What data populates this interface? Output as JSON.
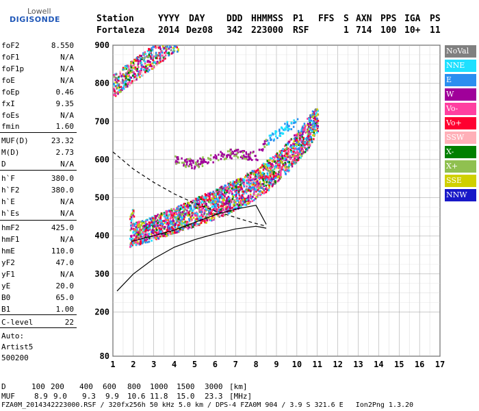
{
  "logo": {
    "line1": "Lowell",
    "line2": "DIGISONDE"
  },
  "header": {
    "labels": [
      "Station",
      "YYYY",
      "DAY",
      "DDD",
      "HHMMSS",
      "P1",
      "FFS",
      "S",
      "AXN",
      "PPS",
      "IGA",
      "PS"
    ],
    "values": [
      "Fortaleza",
      "2014",
      "Dez08",
      "342",
      "223000",
      "RSF",
      "1",
      "714",
      "100",
      "10+",
      "11"
    ]
  },
  "params": [
    {
      "name": "foF2",
      "value": "8.550"
    },
    {
      "name": "foF1",
      "value": "N/A"
    },
    {
      "name": "foF1p",
      "value": "N/A"
    },
    {
      "name": "foE",
      "value": "N/A"
    },
    {
      "name": "foEp",
      "value": "0.46"
    },
    {
      "name": "fxI",
      "value": "9.35"
    },
    {
      "name": "foEs",
      "value": "N/A"
    },
    {
      "name": "fmin",
      "value": "1.60"
    },
    {
      "name": "MUF(D)",
      "value": "23.32"
    },
    {
      "name": "M(D)",
      "value": "2.73"
    },
    {
      "name": "D",
      "value": "N/A"
    },
    {
      "name": "h`F",
      "value": "380.0"
    },
    {
      "name": "h`F2",
      "value": "380.0"
    },
    {
      "name": "h`E",
      "value": "N/A"
    },
    {
      "name": "h`Es",
      "value": "N/A"
    },
    {
      "name": "hmF2",
      "value": "425.0"
    },
    {
      "name": "hmF1",
      "value": "N/A"
    },
    {
      "name": "hmE",
      "value": "110.0"
    },
    {
      "name": "yF2",
      "value": "47.0"
    },
    {
      "name": "yF1",
      "value": "N/A"
    },
    {
      "name": "yE",
      "value": "20.0"
    },
    {
      "name": "B0",
      "value": "65.0"
    },
    {
      "name": "B1",
      "value": "1.00"
    },
    {
      "name": "C-level",
      "value": "22"
    }
  ],
  "auto": {
    "line1": "Auto:",
    "line2": "Artist5",
    "line3": "500200"
  },
  "legend": [
    {
      "label": "NoVal",
      "color": "#808080"
    },
    {
      "label": "NNE",
      "color": "#1ee0ff"
    },
    {
      "label": "E",
      "color": "#2b8ef0"
    },
    {
      "label": "W",
      "color": "#a0009a"
    },
    {
      "label": "Vo-",
      "color": "#ff3fa0"
    },
    {
      "label": "Vo+",
      "color": "#ff0030"
    },
    {
      "label": "SSW",
      "color": "#ffb0b8"
    },
    {
      "label": "X-",
      "color": "#008000"
    },
    {
      "label": "X+",
      "color": "#90c050"
    },
    {
      "label": "SSE",
      "color": "#d0d000"
    },
    {
      "label": "NNW",
      "color": "#1818c8"
    }
  ],
  "muf_table": {
    "d_label": "D",
    "d_values": [
      "100",
      "200",
      "400",
      "600",
      "800",
      "1000",
      "1500",
      "3000"
    ],
    "d_unit": "[km]",
    "muf_label": "MUF",
    "muf_values": [
      "8.9",
      "9.0",
      "9.3",
      "9.9",
      "10.6",
      "11.8",
      "15.0",
      "23.3"
    ],
    "muf_unit": "[MHz]"
  },
  "footer": "FZA0M_2014342223000.RSF / 320fx256h 50 kHz 5.0 km / DPS-4 FZA0M 904 / 3.9 S 321.6 E   Ion2Png 1.3.20",
  "chart_data": {
    "type": "scatter",
    "xlim": [
      1,
      17
    ],
    "ylim": [
      80,
      900
    ],
    "x_ticks": [
      1,
      2,
      3,
      4,
      5,
      6,
      7,
      8,
      9,
      10,
      11,
      12,
      13,
      14,
      15,
      16,
      17
    ],
    "y_ticks": [
      80,
      200,
      300,
      400,
      500,
      600,
      700,
      800,
      900
    ],
    "grid": true,
    "echo_traces": [
      {
        "name": "F-trace-main-lower",
        "points": [
          [
            1.8,
            385
          ],
          [
            2.5,
            395
          ],
          [
            3.5,
            412
          ],
          [
            4.5,
            430
          ],
          [
            5.5,
            448
          ],
          [
            6.5,
            470
          ],
          [
            7.5,
            495
          ],
          [
            8.5,
            530
          ],
          [
            9.5,
            580
          ],
          [
            10.5,
            640
          ],
          [
            11.0,
            690
          ]
        ]
      },
      {
        "name": "F-trace-main-upper",
        "points": [
          [
            2.0,
            410
          ],
          [
            3.0,
            430
          ],
          [
            4.0,
            452
          ],
          [
            5.0,
            475
          ],
          [
            6.0,
            500
          ],
          [
            7.0,
            525
          ],
          [
            8.0,
            555
          ],
          [
            9.0,
            595
          ],
          [
            10.0,
            650
          ],
          [
            10.8,
            710
          ]
        ]
      },
      {
        "name": "second-hop",
        "points": [
          [
            1.0,
            780
          ],
          [
            1.5,
            800
          ],
          [
            2.0,
            820
          ],
          [
            2.5,
            840
          ],
          [
            3.0,
            860
          ],
          [
            3.5,
            880
          ],
          [
            4.0,
            900
          ]
        ]
      },
      {
        "name": "isolated-cluster",
        "points": [
          [
            4.0,
            600
          ],
          [
            5.0,
            590
          ],
          [
            6.0,
            610
          ],
          [
            7.0,
            620
          ],
          [
            8.0,
            610
          ],
          [
            8.5,
            650
          ],
          [
            9.0,
            670
          ],
          [
            9.5,
            690
          ],
          [
            10.0,
            700
          ]
        ]
      }
    ],
    "profile_solid": {
      "points": [
        [
          1.2,
          255
        ],
        [
          2.0,
          300
        ],
        [
          3.0,
          340
        ],
        [
          4.0,
          370
        ],
        [
          5.0,
          390
        ],
        [
          6.0,
          405
        ],
        [
          7.0,
          418
        ],
        [
          8.0,
          425
        ],
        [
          8.5,
          420
        ]
      ]
    },
    "profile_dashed": {
      "points": [
        [
          1.0,
          620
        ],
        [
          2.0,
          575
        ],
        [
          3.0,
          540
        ],
        [
          4.0,
          510
        ],
        [
          5.0,
          485
        ],
        [
          6.0,
          465
        ],
        [
          7.0,
          448
        ],
        [
          7.8,
          435
        ],
        [
          8.5,
          425
        ]
      ]
    },
    "trace_line": {
      "points": [
        [
          1.9,
          385
        ],
        [
          3.0,
          400
        ],
        [
          4.0,
          415
        ],
        [
          5.0,
          435
        ],
        [
          6.0,
          455
        ],
        [
          7.0,
          470
        ],
        [
          8.0,
          480
        ],
        [
          8.5,
          430
        ]
      ]
    }
  }
}
